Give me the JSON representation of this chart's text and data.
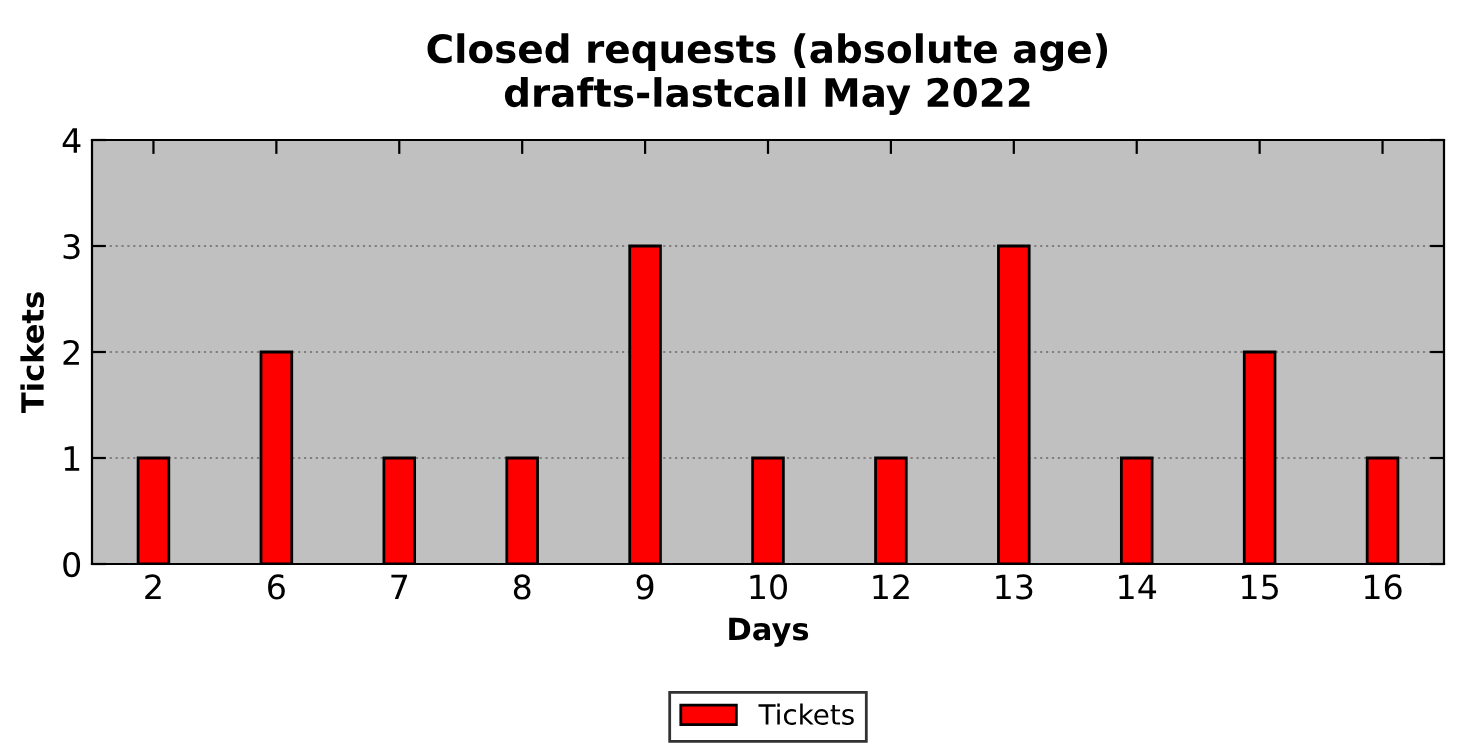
{
  "chart_data": {
    "type": "bar",
    "title": "Closed requests (absolute age)\ndrafts-lastcall May 2022",
    "xlabel": "Days",
    "ylabel": "Tickets",
    "categories": [
      "2",
      "6",
      "7",
      "8",
      "9",
      "10",
      "12",
      "13",
      "14",
      "15",
      "16"
    ],
    "series": [
      {
        "name": "Tickets",
        "color": "#ff0000",
        "values": [
          1,
          2,
          1,
          1,
          3,
          1,
          1,
          3,
          1,
          2,
          1
        ]
      }
    ],
    "ylim": [
      0,
      4
    ],
    "yticks": [
      0,
      1,
      2,
      3,
      4
    ],
    "grid": "y",
    "legend": "bottom"
  }
}
